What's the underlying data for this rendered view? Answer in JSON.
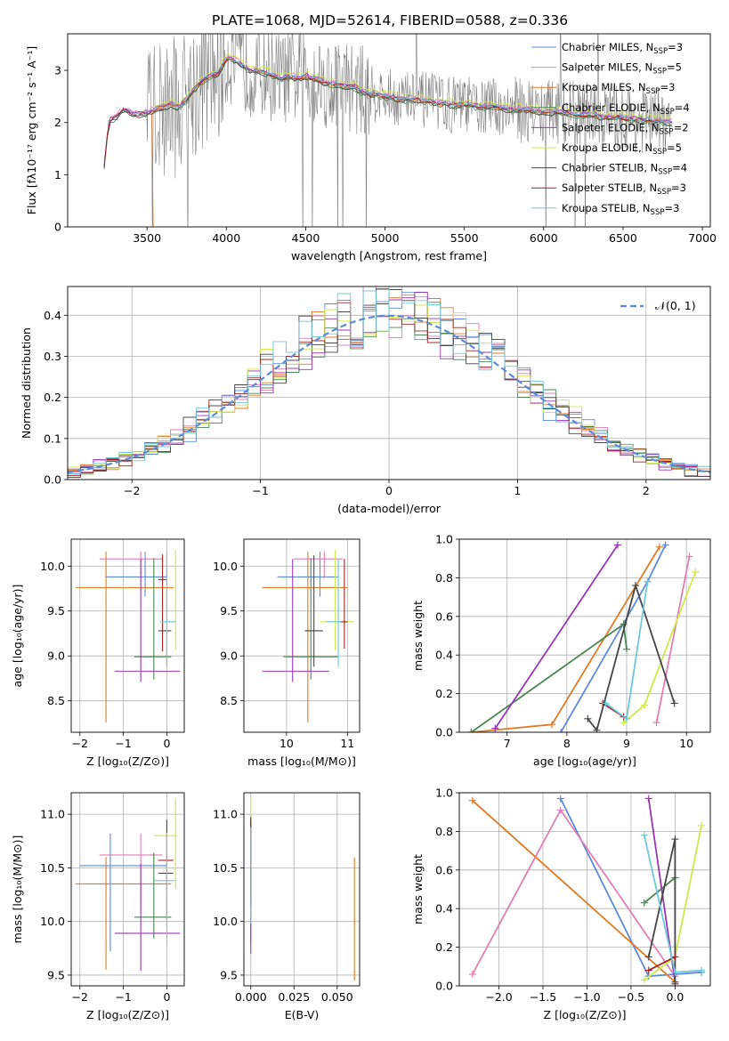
{
  "figure": {
    "title": "PLATE=1068, MJD=52614, FIBERID=0588, z=0.336"
  },
  "colors": {
    "grid": "#b0b0b0",
    "spectrum": "#808080",
    "gaussian": "#5b8bd8"
  },
  "chart_data": [
    {
      "id": "spectrum",
      "type": "line",
      "title": "PLATE=1068, MJD=52614, FIBERID=0588, z=0.336",
      "xlabel": "wavelength [Angstrom, rest frame]",
      "ylabel": "Flux [fλ10⁻¹⁷ erg cm⁻² s⁻¹ A⁻¹]",
      "xlim": [
        3000,
        7050
      ],
      "ylim": [
        0,
        3.7
      ],
      "xticks": [
        3500,
        4000,
        4500,
        5000,
        5500,
        6000,
        6500,
        7000
      ],
      "yticks": [
        0,
        1,
        2,
        3
      ],
      "grid": false,
      "legend_position": "top-right",
      "data_wavelength": [
        3230,
        3260,
        3300,
        3350,
        3400,
        3450,
        3500,
        3550,
        3600,
        3650,
        3700,
        3750,
        3800,
        3850,
        3900,
        3950,
        4000,
        4050,
        4100,
        4150,
        4200,
        4250,
        4300,
        4350,
        4400,
        4450,
        4500,
        4550,
        4600,
        4650,
        4700,
        4750,
        4800,
        4850,
        4900,
        4950,
        5000,
        5100,
        5200,
        5300,
        5400,
        5500,
        5600,
        5700,
        5800,
        5900,
        6000,
        6100,
        6200,
        6300,
        6400,
        6500,
        6600,
        6700,
        6800
      ],
      "data_flux": [
        1.2,
        2.05,
        2.1,
        2.25,
        2.2,
        2.15,
        2.2,
        2.25,
        2.3,
        2.35,
        2.3,
        2.45,
        2.65,
        2.8,
        2.9,
        2.95,
        3.25,
        3.2,
        3.1,
        3.0,
        3.0,
        2.95,
        2.9,
        2.85,
        2.9,
        2.85,
        2.9,
        2.85,
        2.8,
        2.75,
        2.75,
        2.7,
        2.7,
        2.6,
        2.55,
        2.55,
        2.5,
        2.45,
        2.45,
        2.4,
        2.35,
        2.35,
        2.3,
        2.3,
        2.25,
        2.25,
        2.2,
        2.2,
        2.15,
        2.15,
        2.1,
        2.1,
        2.05,
        2.05,
        2.0
      ],
      "series": [
        {
          "name": "Chabrier MILES, N",
          "sub": "SSP",
          "suffix": "=3",
          "color": "#5b8bd8",
          "offset": 0.0
        },
        {
          "name": "Salpeter MILES, N",
          "sub": "SSP",
          "suffix": "=5",
          "color": "#e37db4",
          "offset": 0.03
        },
        {
          "name": "Kroupa MILES, N",
          "sub": "SSP",
          "suffix": "=3",
          "color": "#e07a24",
          "offset": -0.02
        },
        {
          "name": "Chabrier ELODIE, N",
          "sub": "SSP",
          "suffix": "=4",
          "color": "#4a8552",
          "offset": -0.05
        },
        {
          "name": "Salpeter ELODIE, N",
          "sub": "SSP",
          "suffix": "=2",
          "color": "#9a36b4",
          "offset": 0.02
        },
        {
          "name": "Kroupa ELODIE, N",
          "sub": "SSP",
          "suffix": "=5",
          "color": "#cde94a",
          "offset": 0.08
        },
        {
          "name": "Chabrier STELIB, N",
          "sub": "SSP",
          "suffix": "=4",
          "color": "#454545",
          "offset": -0.04
        },
        {
          "name": "Salpeter STELIB, N",
          "sub": "SSP",
          "suffix": "=3",
          "color": "#a02424",
          "offset": -0.01
        },
        {
          "name": "Kroupa STELIB, N",
          "sub": "SSP",
          "suffix": "=3",
          "color": "#6fc8d8",
          "offset": 0.01
        }
      ]
    },
    {
      "id": "residuals",
      "type": "histogram",
      "xlabel": "(data-model)/error",
      "ylabel": "Normed distribution",
      "xlim": [
        -2.5,
        2.5
      ],
      "ylim": [
        0,
        0.47
      ],
      "xticks": [
        -2,
        -1,
        0,
        1,
        2
      ],
      "yticks": [
        0.0,
        0.1,
        0.2,
        0.3,
        0.4
      ],
      "grid": true,
      "legend_position": "top-right",
      "bin_width": 0.1,
      "reference": {
        "name": "𝒩(0, 1)",
        "mean": 0,
        "sigma": 1
      }
    },
    {
      "id": "age-vs-Z",
      "type": "errorbar",
      "xlabel": "Z [log₁₀(Z/Z⊙)]",
      "ylabel": "age  [log₁₀(age/yr)]",
      "xlim": [
        -2.2,
        0.4
      ],
      "ylim": [
        8.15,
        10.3
      ],
      "xticks": [
        -2,
        -1,
        0
      ],
      "yticks": [
        8.5,
        9.0,
        9.5,
        10.0
      ],
      "grid": true,
      "points": [
        {
          "series": "Chabrier MILES",
          "x": -0.5,
          "xerr": [
            0.9,
            0.5
          ],
          "y": 9.88,
          "yerr": [
            0.22,
            0.28
          ]
        },
        {
          "series": "Salpeter MILES",
          "x": -0.6,
          "xerr": [
            0.95,
            0.5
          ],
          "y": 10.08,
          "yerr": [
            0.22,
            0.08
          ]
        },
        {
          "series": "Kroupa MILES",
          "x": -1.4,
          "xerr": [
            0.7,
            1.55
          ],
          "y": 9.76,
          "yerr": [
            1.5,
            0.4
          ]
        },
        {
          "series": "Chabrier ELODIE",
          "x": -0.3,
          "xerr": [
            0.45,
            0.4
          ],
          "y": 8.99,
          "yerr": [
            0.25,
            1.1
          ]
        },
        {
          "series": "Salpeter ELODIE",
          "x": -0.6,
          "xerr": [
            0.6,
            0.9
          ],
          "y": 8.83,
          "yerr": [
            0.12,
            1.25
          ]
        },
        {
          "series": "Kroupa ELODIE",
          "x": 0.2,
          "xerr": [
            0.2,
            0.0
          ],
          "y": 9.38,
          "yerr": [
            0.32,
            0.8
          ]
        },
        {
          "series": "Chabrier STELIB",
          "x": 0.0,
          "xerr": [
            0.2,
            0.1
          ],
          "y": 9.28,
          "yerr": [
            0.4,
            0.84
          ]
        },
        {
          "series": "Salpeter STELIB",
          "x": -0.1,
          "xerr": [
            0.1,
            0.1
          ],
          "y": 9.85,
          "yerr": [
            0.8,
            0.28
          ]
        },
        {
          "series": "Kroupa STELIB",
          "x": 0.0,
          "xerr": [
            0.15,
            0.2
          ],
          "y": 9.38,
          "yerr": [
            0.5,
            0.8
          ]
        }
      ]
    },
    {
      "id": "age-vs-mass",
      "type": "errorbar",
      "xlabel": "mass [log₁₀(M/M⊙)]",
      "ylabel": "",
      "xlim": [
        9.3,
        11.2
      ],
      "ylim": [
        8.15,
        10.3
      ],
      "xticks": [
        10,
        11
      ],
      "yticks": [
        8.5,
        9.0,
        9.5,
        10.0
      ],
      "grid": true,
      "points": [
        {
          "series": "Chabrier MILES",
          "x": 10.55,
          "xerr": [
            0.7,
            0.3
          ],
          "y": 9.88,
          "yerr": [
            0.22,
            0.28
          ]
        },
        {
          "series": "Salpeter MILES",
          "x": 10.62,
          "xerr": [
            0.5,
            0.3
          ],
          "y": 10.08,
          "yerr": [
            0.22,
            0.08
          ]
        },
        {
          "series": "Kroupa MILES",
          "x": 10.35,
          "xerr": [
            0.75,
            0.65
          ],
          "y": 9.76,
          "yerr": [
            1.5,
            0.4
          ]
        },
        {
          "series": "Chabrier ELODIE",
          "x": 10.4,
          "xerr": [
            0.45,
            0.45
          ],
          "y": 8.99,
          "yerr": [
            0.25,
            1.1
          ]
        },
        {
          "series": "Salpeter ELODIE",
          "x": 10.1,
          "xerr": [
            0.5,
            0.6
          ],
          "y": 8.83,
          "yerr": [
            0.12,
            1.25
          ]
        },
        {
          "series": "Kroupa ELODIE",
          "x": 10.8,
          "xerr": [
            0.25,
            0.3
          ],
          "y": 9.38,
          "yerr": [
            0.32,
            0.8
          ]
        },
        {
          "series": "Chabrier STELIB",
          "x": 10.45,
          "xerr": [
            0.15,
            0.15
          ],
          "y": 9.28,
          "yerr": [
            0.4,
            0.84
          ]
        },
        {
          "series": "Salpeter STELIB",
          "x": 10.95,
          "xerr": [
            0.1,
            0.05
          ],
          "y": 9.38,
          "yerr": [
            0.3,
            0.7
          ]
        },
        {
          "series": "Kroupa STELIB",
          "x": 10.85,
          "xerr": [
            0.2,
            0.05
          ],
          "y": 9.38,
          "yerr": [
            0.5,
            0.7
          ]
        }
      ]
    },
    {
      "id": "weight-vs-age",
      "type": "line",
      "xlabel": "age  [log₁₀(age/yr)]",
      "ylabel": "mass weight",
      "xlim": [
        6.2,
        10.4
      ],
      "ylim": [
        0,
        1.0
      ],
      "xticks": [
        7,
        8,
        9,
        10
      ],
      "yticks": [
        0.0,
        0.2,
        0.4,
        0.6,
        0.8,
        1.0
      ],
      "grid": true,
      "series": [
        {
          "name": "Chabrier MILES",
          "x": [
            7.9,
            9.35,
            9.65
          ],
          "y": [
            0.0,
            0.78,
            0.97
          ]
        },
        {
          "name": "Salpeter MILES",
          "x": [
            9.5,
            10.05
          ],
          "y": [
            0.05,
            0.91
          ]
        },
        {
          "name": "Kroupa MILES",
          "x": [
            6.4,
            7.75,
            9.55
          ],
          "y": [
            0.0,
            0.04,
            0.96
          ]
        },
        {
          "name": "Chabrier ELODIE",
          "x": [
            6.4,
            8.95,
            9.0
          ],
          "y": [
            0.0,
            0.56,
            0.43
          ]
        },
        {
          "name": "Salpeter ELODIE",
          "x": [
            6.8,
            8.85
          ],
          "y": [
            0.02,
            0.97
          ]
        },
        {
          "name": "Kroupa ELODIE",
          "x": [
            8.95,
            9.3,
            10.15
          ],
          "y": [
            0.05,
            0.14,
            0.83
          ]
        },
        {
          "name": "Chabrier STELIB",
          "x": [
            8.35,
            8.5,
            9.15,
            9.8
          ],
          "y": [
            0.07,
            0.01,
            0.76,
            0.15
          ]
        },
        {
          "name": "Salpeter STELIB",
          "x": [
            8.6,
            8.95
          ],
          "y": [
            0.15,
            0.08
          ]
        },
        {
          "name": "Kroupa STELIB",
          "x": [
            8.65,
            9.0,
            9.35
          ],
          "y": [
            0.15,
            0.07,
            0.78
          ]
        }
      ]
    },
    {
      "id": "mass-vs-Z",
      "type": "errorbar",
      "xlabel": "Z [log₁₀(Z/Z⊙)]",
      "ylabel": "mass [log₁₀(M/M⊙)]",
      "xlim": [
        -2.2,
        0.4
      ],
      "ylim": [
        9.4,
        11.2
      ],
      "xticks": [
        -2,
        -1,
        0
      ],
      "yticks": [
        9.5,
        10.0,
        10.5,
        11.0
      ],
      "grid": true,
      "points": [
        {
          "series": "Chabrier MILES",
          "x": -1.3,
          "xerr": [
            0.7,
            1.3
          ],
          "y": 10.52,
          "yerr": [
            0.8,
            0.3
          ]
        },
        {
          "series": "Salpeter MILES",
          "x": -0.6,
          "xerr": [
            0.95,
            0.5
          ],
          "y": 10.62,
          "yerr": [
            0.5,
            0.2
          ]
        },
        {
          "series": "Kroupa MILES",
          "x": -1.4,
          "xerr": [
            0.7,
            1.5
          ],
          "y": 10.35,
          "yerr": [
            0.8,
            0.25
          ]
        },
        {
          "series": "Chabrier ELODIE",
          "x": -0.3,
          "xerr": [
            0.45,
            0.4
          ],
          "y": 10.04,
          "yerr": [
            0.2,
            0.6
          ]
        },
        {
          "series": "Salpeter ELODIE",
          "x": -0.6,
          "xerr": [
            0.6,
            0.9
          ],
          "y": 9.89,
          "yerr": [
            0.35,
            0.65
          ]
        },
        {
          "series": "Kroupa ELODIE",
          "x": 0.2,
          "xerr": [
            0.5,
            0.05
          ],
          "y": 10.8,
          "yerr": [
            0.5,
            0.35
          ]
        },
        {
          "series": "Chabrier STELIB",
          "x": 0.0,
          "xerr": [
            0.2,
            0.15
          ],
          "y": 10.45,
          "yerr": [
            0.5,
            0.5
          ]
        },
        {
          "series": "Salpeter STELIB",
          "x": 0.0,
          "xerr": [
            0.2,
            0.15
          ],
          "y": 10.57,
          "yerr": [
            0.55,
            0.35
          ]
        },
        {
          "series": "Kroupa STELIB",
          "x": 0.0,
          "xerr": [
            0.3,
            0.2
          ],
          "y": 10.38,
          "yerr": [
            0.6,
            0.45
          ]
        }
      ]
    },
    {
      "id": "mass-vs-ebv",
      "type": "errorbar",
      "xlabel": "E(B-V)",
      "ylabel": "",
      "xlim": [
        -0.004,
        0.063
      ],
      "ylim": [
        9.4,
        11.2
      ],
      "xticks": [
        0.0,
        0.025,
        0.05
      ],
      "yticks": [
        9.5,
        10.0,
        10.5,
        11.0
      ],
      "grid": true,
      "points": [
        {
          "series": "Chabrier MILES",
          "x": 0.0,
          "xerr": [
            0,
            0
          ],
          "y": 10.52,
          "yerr": [
            0.7,
            0.3
          ]
        },
        {
          "series": "Salpeter MILES",
          "x": 0.0,
          "xerr": [
            0,
            0
          ],
          "y": 10.62,
          "yerr": [
            0.5,
            0.2
          ]
        },
        {
          "series": "Kroupa MILES",
          "x": 0.06,
          "xerr": [
            0,
            0
          ],
          "y": 10.05,
          "yerr": [
            0.6,
            0.55
          ]
        },
        {
          "series": "Chabrier ELODIE",
          "x": 0.0,
          "xerr": [
            0,
            0
          ],
          "y": 10.5,
          "yerr": [
            0.3,
            0.5
          ]
        },
        {
          "series": "Salpeter ELODIE",
          "x": 0.0,
          "xerr": [
            0,
            0
          ],
          "y": 10.2,
          "yerr": [
            0.5,
            0.75
          ]
        },
        {
          "series": "Kroupa ELODIE",
          "x": 0.0,
          "xerr": [
            0,
            0
          ],
          "y": 10.8,
          "yerr": [
            0.3,
            0.35
          ]
        },
        {
          "series": "Chabrier STELIB",
          "x": 0.0,
          "xerr": [
            0,
            0
          ],
          "y": 10.45,
          "yerr": [
            0.3,
            0.5
          ]
        },
        {
          "series": "Salpeter STELIB",
          "x": 0.0,
          "xerr": [
            0,
            0
          ],
          "y": 10.57,
          "yerr": [
            0.4,
            0.4
          ]
        },
        {
          "series": "Kroupa STELIB",
          "x": 0.0,
          "xerr": [
            0,
            0
          ],
          "y": 10.38,
          "yerr": [
            0.4,
            0.5
          ]
        }
      ]
    },
    {
      "id": "weight-vs-Z",
      "type": "line",
      "xlabel": "Z [log₁₀(Z/Z⊙)]",
      "ylabel": "mass weight",
      "xlim": [
        -2.45,
        0.4
      ],
      "ylim": [
        0,
        1.0
      ],
      "xticks": [
        -2.0,
        -1.5,
        -1.0,
        -0.5,
        0.0
      ],
      "yticks": [
        0.0,
        0.2,
        0.4,
        0.6,
        0.8,
        1.0
      ],
      "grid": true,
      "series": [
        {
          "name": "Chabrier MILES",
          "x": [
            -1.3,
            -0.3,
            0.3
          ],
          "y": [
            0.97,
            0.05,
            0.07
          ]
        },
        {
          "name": "Salpeter MILES",
          "x": [
            -2.3,
            -1.3,
            0.0
          ],
          "y": [
            0.06,
            0.91,
            0.05
          ]
        },
        {
          "name": "Kroupa MILES",
          "x": [
            -2.3,
            0.0
          ],
          "y": [
            0.96,
            0.02
          ]
        },
        {
          "name": "Chabrier ELODIE",
          "x": [
            -0.35,
            0.0
          ],
          "y": [
            0.43,
            0.56
          ]
        },
        {
          "name": "Salpeter ELODIE",
          "x": [
            -0.3,
            0.0
          ],
          "y": [
            0.97,
            0.02
          ]
        },
        {
          "name": "Kroupa ELODIE",
          "x": [
            -0.35,
            0.0,
            0.3
          ],
          "y": [
            0.03,
            0.15,
            0.83
          ]
        },
        {
          "name": "Chabrier STELIB",
          "x": [
            -0.3,
            0.0,
            0.0
          ],
          "y": [
            0.15,
            0.76,
            0.01
          ]
        },
        {
          "name": "Salpeter STELIB",
          "x": [
            -0.3,
            0.0
          ],
          "y": [
            0.08,
            0.15
          ]
        },
        {
          "name": "Kroupa STELIB",
          "x": [
            -0.35,
            0.0,
            0.3
          ],
          "y": [
            0.78,
            0.07,
            0.08
          ]
        }
      ]
    }
  ]
}
